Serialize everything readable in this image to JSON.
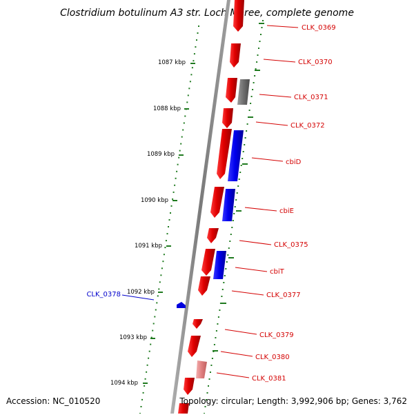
{
  "title": "Clostridium botulinum A3 str. Loch Maree, complete genome",
  "footer": {
    "accession": "Accession: NC_010520",
    "summary": "Topology: circular; Length: 3,992,906 bp; Genes: 3,762"
  },
  "colors": {
    "backbone": "#8c8c8c",
    "ticks": "#1f7a1f",
    "forward_gene": "#e00000",
    "forward_label": "#d40000",
    "reverse_gene": "#0000ff",
    "reverse_label": "#0000cc",
    "gray_gene": "#777777",
    "pink_gene": "#e88a8a"
  },
  "kbp_ticks": [
    "1087 kbp",
    "1088 kbp",
    "1089 kbp",
    "1090 kbp",
    "1091 kbp",
    "1092 kbp",
    "1093 kbp",
    "1094 kbp"
  ],
  "genes": [
    {
      "label": "CLK_0369"
    },
    {
      "label": "CLK_0370"
    },
    {
      "label": "CLK_0371"
    },
    {
      "label": "CLK_0372"
    },
    {
      "label": "cbiD"
    },
    {
      "label": "cbiE"
    },
    {
      "label": "CLK_0375"
    },
    {
      "label": "cbiT"
    },
    {
      "label": "CLK_0377"
    },
    {
      "label": "CLK_0379"
    },
    {
      "label": "CLK_0380"
    },
    {
      "label": "CLK_0381"
    }
  ],
  "reverse_genes": [
    {
      "label": "CLK_0378"
    }
  ]
}
